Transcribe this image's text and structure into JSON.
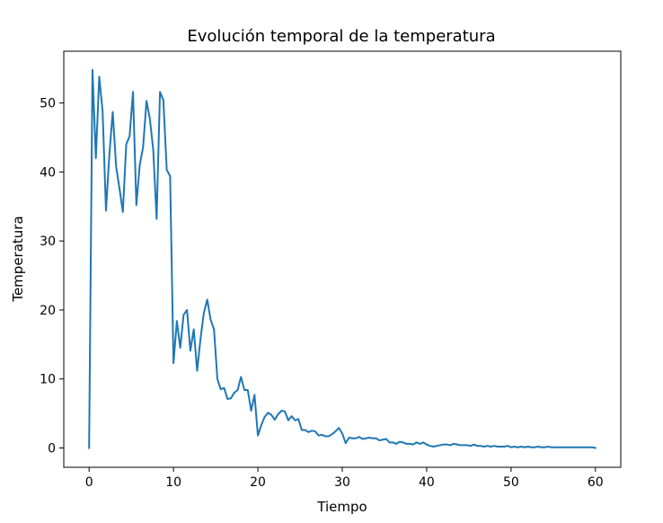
{
  "chart_data": {
    "type": "line",
    "title": "Evolución temporal de la temperatura",
    "xlabel": "Tiempo",
    "ylabel": "Temperatura",
    "xlim": [
      -3,
      63
    ],
    "ylim": [
      -2.8,
      57.5
    ],
    "xticks": [
      0,
      10,
      20,
      30,
      40,
      50,
      60
    ],
    "yticks": [
      0,
      10,
      20,
      30,
      40,
      50
    ],
    "grid": false,
    "legend": "none",
    "series": [
      {
        "color": "#1f77b4",
        "x": [
          0,
          0.4,
          0.8,
          1.2,
          1.6,
          2.0,
          2.4,
          2.8,
          3.2,
          3.6,
          4.0,
          4.4,
          4.8,
          5.2,
          5.6,
          6.0,
          6.4,
          6.8,
          7.2,
          7.6,
          8.0,
          8.4,
          8.8,
          9.2,
          9.6,
          10.0,
          10.4,
          10.8,
          11.2,
          11.6,
          12.0,
          12.4,
          12.8,
          13.2,
          13.6,
          14.0,
          14.4,
          14.8,
          15.2,
          15.6,
          16.0,
          16.4,
          16.8,
          17.2,
          17.6,
          18.0,
          18.4,
          18.8,
          19.2,
          19.6,
          20.0,
          20.4,
          20.8,
          21.2,
          21.6,
          22.0,
          22.4,
          22.8,
          23.2,
          23.6,
          24.0,
          24.4,
          24.8,
          25.2,
          25.6,
          26.0,
          26.4,
          26.8,
          27.2,
          27.6,
          28.0,
          28.4,
          28.8,
          29.2,
          29.6,
          30.0,
          30.4,
          30.8,
          31.2,
          31.6,
          32.0,
          32.4,
          32.8,
          33.2,
          33.6,
          34.0,
          34.4,
          34.8,
          35.2,
          35.6,
          36.0,
          36.4,
          36.8,
          37.2,
          37.6,
          38.0,
          38.4,
          38.8,
          39.2,
          39.6,
          40.0,
          40.4,
          40.8,
          41.2,
          41.6,
          42.0,
          42.4,
          42.8,
          43.2,
          43.6,
          44.0,
          44.4,
          44.8,
          45.2,
          45.6,
          46.0,
          46.4,
          46.8,
          47.2,
          47.6,
          48.0,
          48.4,
          48.8,
          49.2,
          49.6,
          50.0,
          50.4,
          50.8,
          51.2,
          51.6,
          52.0,
          52.4,
          52.8,
          53.2,
          53.6,
          54.0,
          54.4,
          54.8,
          55.2,
          55.6,
          56.0,
          56.4,
          56.8,
          57.2,
          57.6,
          58.0,
          58.4,
          58.8,
          59.2,
          59.6,
          60.0
        ],
        "y": [
          0.0,
          54.8,
          42.0,
          53.8,
          48.8,
          34.4,
          42.5,
          48.7,
          40.8,
          37.6,
          34.2,
          44.0,
          45.2,
          51.6,
          35.2,
          41.0,
          43.6,
          50.3,
          47.7,
          43.2,
          33.2,
          51.6,
          50.4,
          40.3,
          39.4,
          12.3,
          18.4,
          14.5,
          19.3,
          20.0,
          14.1,
          17.2,
          11.2,
          15.8,
          19.6,
          21.5,
          18.6,
          17.2,
          10.0,
          8.5,
          8.7,
          7.1,
          7.2,
          8.0,
          8.4,
          10.3,
          8.4,
          8.4,
          5.4,
          7.7,
          1.8,
          3.3,
          4.5,
          5.1,
          4.8,
          4.1,
          4.9,
          5.4,
          5.3,
          4.0,
          4.6,
          4.0,
          4.2,
          2.6,
          2.6,
          2.3,
          2.5,
          2.4,
          1.8,
          1.9,
          1.7,
          1.7,
          2.0,
          2.4,
          2.9,
          2.1,
          0.7,
          1.5,
          1.4,
          1.4,
          1.6,
          1.3,
          1.4,
          1.5,
          1.4,
          1.4,
          1.1,
          1.2,
          1.3,
          0.8,
          0.8,
          0.6,
          0.9,
          0.8,
          0.6,
          0.6,
          0.5,
          0.8,
          0.6,
          0.8,
          0.5,
          0.3,
          0.2,
          0.3,
          0.4,
          0.5,
          0.5,
          0.4,
          0.6,
          0.5,
          0.4,
          0.4,
          0.4,
          0.3,
          0.5,
          0.3,
          0.3,
          0.2,
          0.3,
          0.2,
          0.3,
          0.2,
          0.2,
          0.2,
          0.3,
          0.1,
          0.2,
          0.1,
          0.2,
          0.1,
          0.2,
          0.1,
          0.1,
          0.2,
          0.1,
          0.1,
          0.2,
          0.1,
          0.1,
          0.1,
          0.1,
          0.1,
          0.1,
          0.1,
          0.1,
          0.1,
          0.1,
          0.1,
          0.1,
          0.1,
          0.0
        ]
      }
    ]
  }
}
